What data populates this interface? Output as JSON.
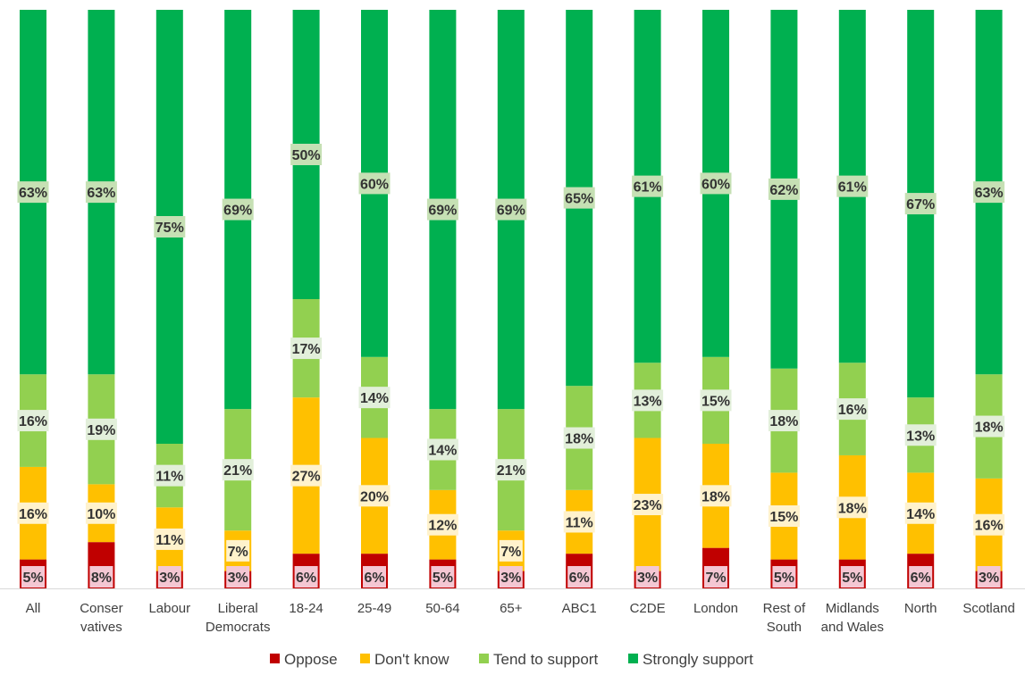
{
  "chart_data": {
    "type": "bar",
    "stacked": true,
    "orientation": "vertical",
    "title": "",
    "xlabel": "",
    "ylabel": "",
    "ylim": [
      0,
      100
    ],
    "grid": false,
    "legend_position": "bottom",
    "categories": [
      [
        "All"
      ],
      [
        "Conser",
        "vatives"
      ],
      [
        "Labour"
      ],
      [
        "Liberal",
        "Democrats"
      ],
      [
        "18-24"
      ],
      [
        "25-49"
      ],
      [
        "50-64"
      ],
      [
        "65+"
      ],
      [
        "ABC1"
      ],
      [
        "C2DE"
      ],
      [
        "London"
      ],
      [
        "Rest of",
        "South"
      ],
      [
        "Midlands",
        "and Wales"
      ],
      [
        "North"
      ],
      [
        "Scotland"
      ]
    ],
    "series": [
      {
        "name": "Oppose",
        "color": "#C00000",
        "label_bg": "#F4C7D3",
        "values": [
          5,
          8,
          3,
          3,
          6,
          6,
          5,
          3,
          6,
          3,
          7,
          5,
          5,
          6,
          3
        ],
        "labels": [
          "5%",
          "8%",
          "3%",
          "3%",
          "6%",
          "6%",
          "5%",
          "3%",
          "6%",
          "3%",
          "7%",
          "5%",
          "5%",
          "6%",
          "3%"
        ]
      },
      {
        "name": "Don't know",
        "color": "#FFC000",
        "label_bg": "#FFF2CC",
        "values": [
          16,
          10,
          11,
          7,
          27,
          20,
          12,
          7,
          11,
          23,
          18,
          15,
          18,
          14,
          16
        ],
        "labels": [
          "16%",
          "10%",
          "11%",
          "7%",
          "27%",
          "20%",
          "12%",
          "7%",
          "11%",
          "23%",
          "18%",
          "15%",
          "18%",
          "14%",
          "16%"
        ]
      },
      {
        "name": "Tend to support",
        "color": "#92D050",
        "label_bg": "#E2EFDA",
        "values": [
          16,
          19,
          11,
          21,
          17,
          14,
          14,
          21,
          18,
          13,
          15,
          18,
          16,
          13,
          18
        ],
        "labels": [
          "16%",
          "19%",
          "11%",
          "21%",
          "17%",
          "14%",
          "14%",
          "21%",
          "18%",
          "13%",
          "15%",
          "18%",
          "16%",
          "13%",
          "18%"
        ]
      },
      {
        "name": "Strongly support",
        "color": "#00B050",
        "label_bg": "#C6E0B4",
        "values": [
          63,
          63,
          75,
          69,
          50,
          60,
          69,
          69,
          65,
          61,
          60,
          62,
          61,
          67,
          63
        ],
        "labels": [
          "63%",
          "63%",
          "75%",
          "69%",
          "50%",
          "60%",
          "69%",
          "69%",
          "65%",
          "61%",
          "60%",
          "62%",
          "61%",
          "67%",
          "63%"
        ]
      }
    ]
  }
}
